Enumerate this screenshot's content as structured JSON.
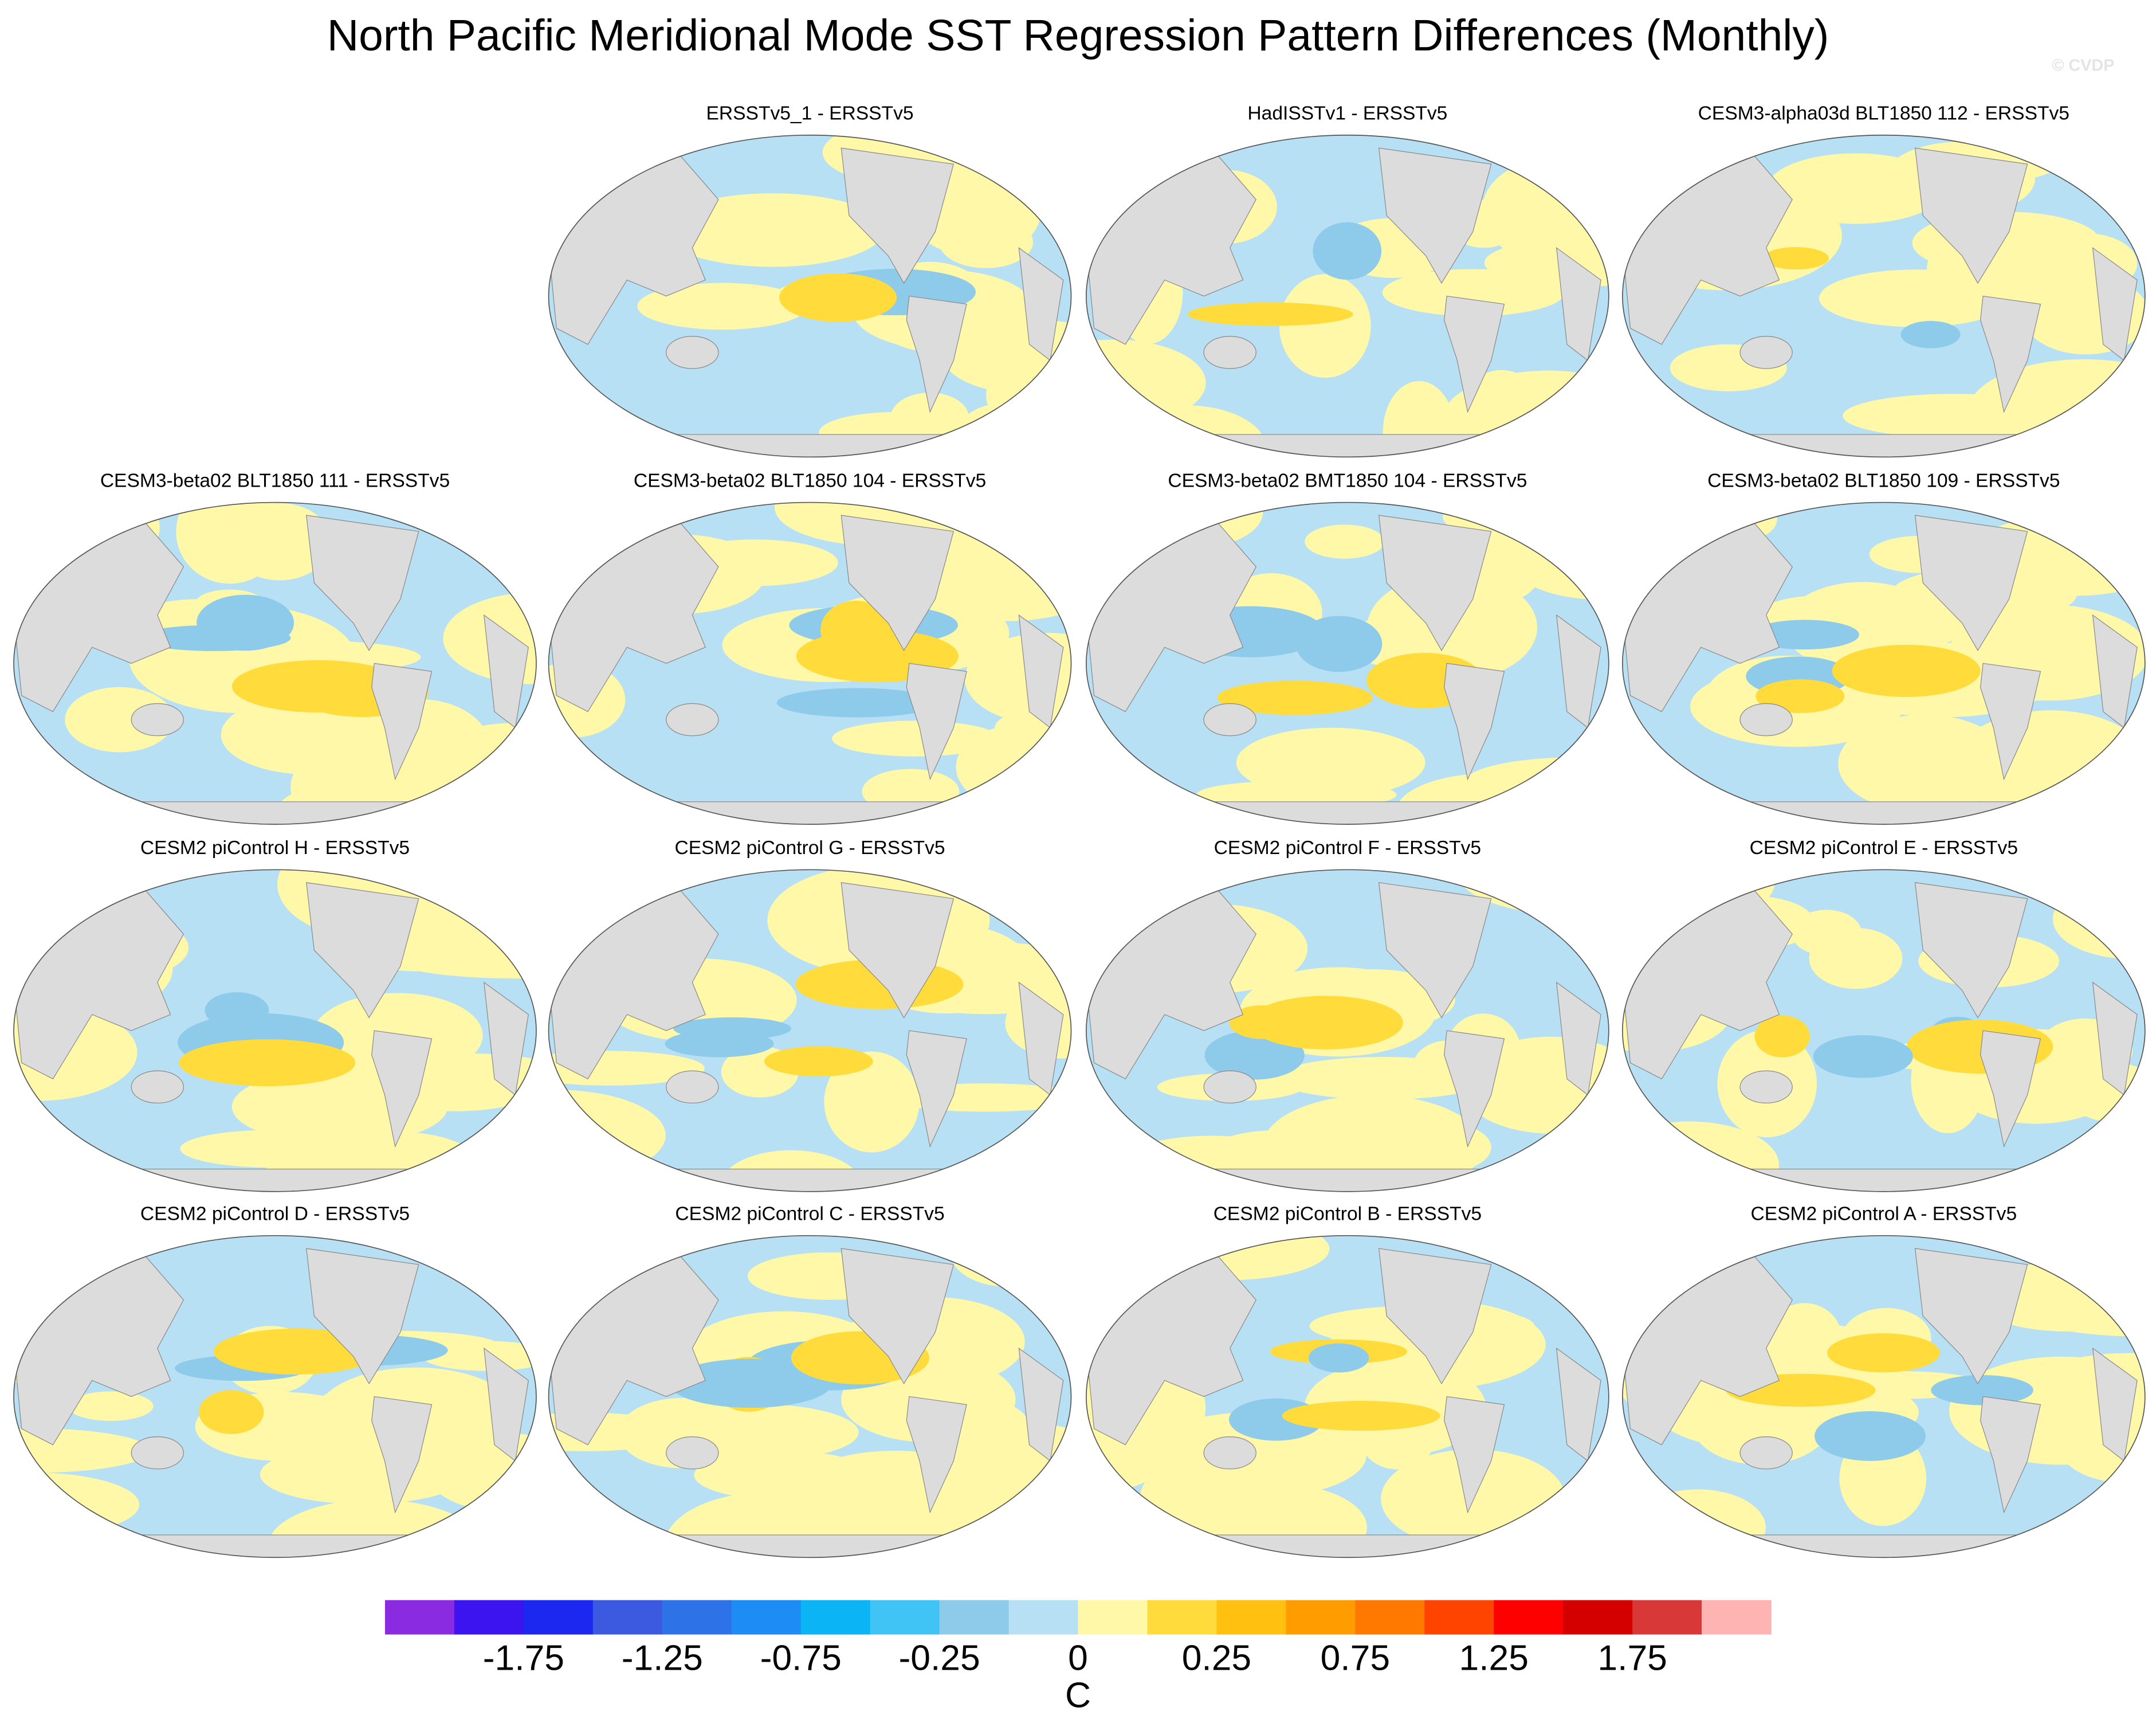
{
  "title": "North Pacific Meridional Mode SST Regression Pattern Differences (Monthly)",
  "watermark": "© CVDP",
  "panels": [
    {
      "title": "ERSSTv5_1 - ERSSTv5"
    },
    {
      "title": "HadISSTv1 - ERSSTv5"
    },
    {
      "title": "CESM3-alpha03d BLT1850 112 - ERSSTv5"
    },
    {
      "title": "CESM3-beta02 BLT1850 111 - ERSSTv5"
    },
    {
      "title": "CESM3-beta02 BLT1850 104 - ERSSTv5"
    },
    {
      "title": "CESM3-beta02 BMT1850 104 - ERSSTv5"
    },
    {
      "title": "CESM3-beta02 BLT1850 109 - ERSSTv5"
    },
    {
      "title": "CESM2 piControl H - ERSSTv5"
    },
    {
      "title": "CESM2 piControl G - ERSSTv5"
    },
    {
      "title": "CESM2 piControl F - ERSSTv5"
    },
    {
      "title": "CESM2 piControl E - ERSSTv5"
    },
    {
      "title": "CESM2 piControl D - ERSSTv5"
    },
    {
      "title": "CESM2 piControl C - ERSSTv5"
    },
    {
      "title": "CESM2 piControl B - ERSSTv5"
    },
    {
      "title": "CESM2 piControl A - ERSSTv5"
    }
  ],
  "colorbar": {
    "colors": [
      "#8a2be2",
      "#3b14f0",
      "#1c28f0",
      "#3c5ae0",
      "#2e72e8",
      "#1e8cf5",
      "#0ab4f5",
      "#40c4f5",
      "#8ecbeb",
      "#b8e0f5",
      "#fff8a8",
      "#ffdc3c",
      "#ffc010",
      "#ff9c00",
      "#ff7800",
      "#ff4400",
      "#ff0000",
      "#d40000",
      "#d83838",
      "#ffb4b4"
    ],
    "levels": [
      -2,
      -1.75,
      -1.5,
      -1.25,
      -1,
      -0.75,
      -0.5,
      -0.25,
      -0.1,
      0,
      0.1,
      0.25,
      0.5,
      0.75,
      1,
      1.25,
      1.5,
      1.75,
      2
    ],
    "ticks": [
      -1.75,
      -1.25,
      -0.75,
      -0.25,
      0,
      0.25,
      0.75,
      1.25,
      1.75
    ],
    "unit": "C"
  }
}
